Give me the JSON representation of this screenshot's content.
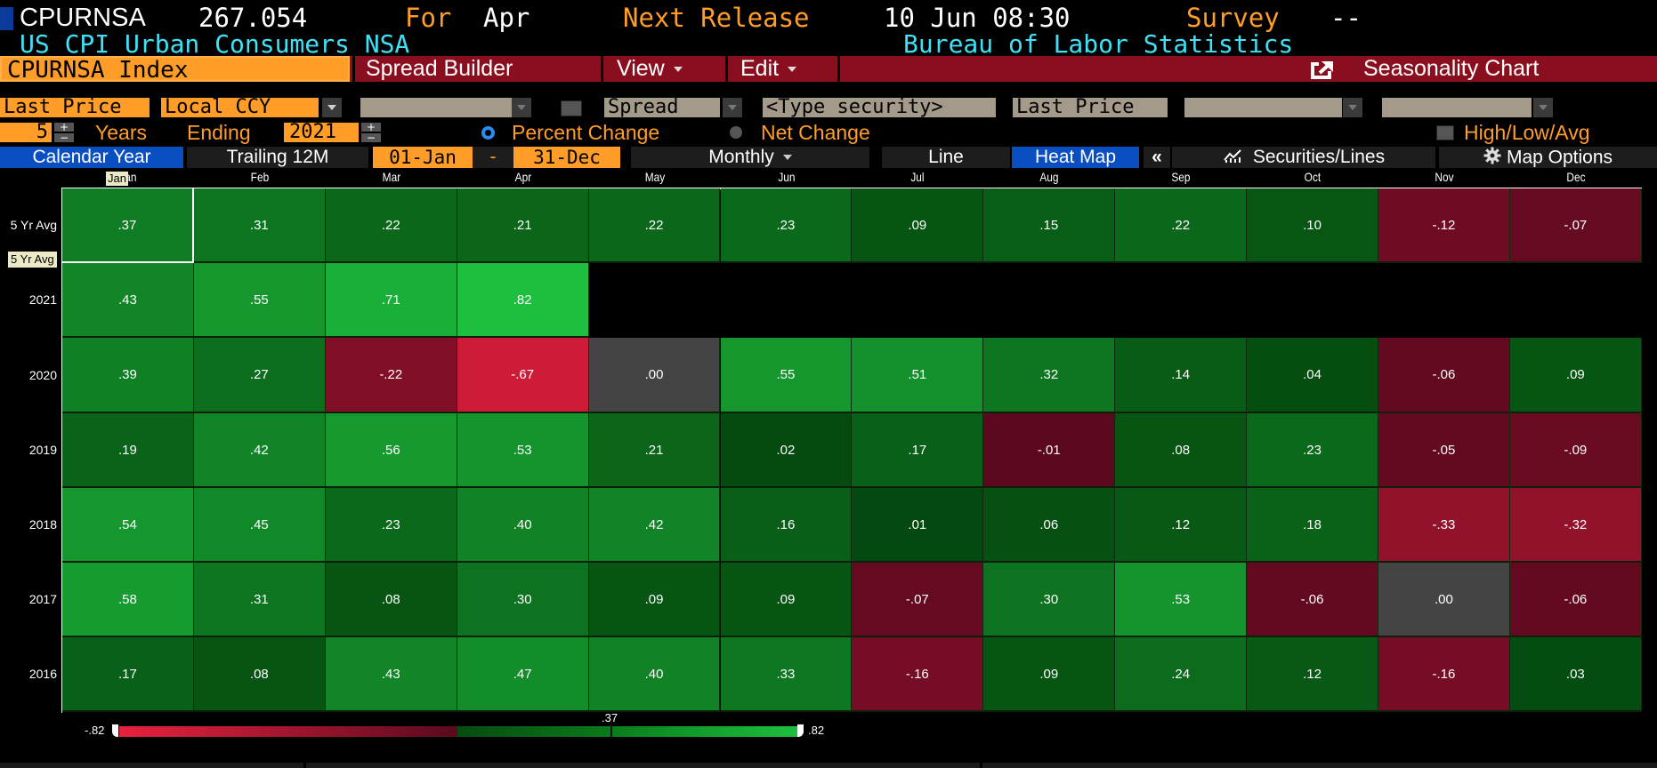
{
  "header": {
    "ticker": "CPURNSA",
    "last_value": "267.054",
    "for_label": "For",
    "for_period": "Apr",
    "next_release_label": "Next Release",
    "next_release_value": "10 Jun 08:30",
    "survey_label": "Survey",
    "survey_value": "--",
    "description": "US CPI Urban Consumers NSA",
    "source": "Bureau of Labor Statistics"
  },
  "toolbar": {
    "security": "CPURNSA Index",
    "spread_builder": "Spread Builder",
    "view": "View",
    "edit": "Edit",
    "title": "Seasonality Chart",
    "title_icon": "export-icon"
  },
  "controls": {
    "field": "Last Price",
    "currency": "Local CCY",
    "blank_dropdown_1": "",
    "spread_label": "Spread",
    "security_placeholder": "<Type security>",
    "field2": "Last Price",
    "blank_dropdown_2": "",
    "blank_dropdown_3": ""
  },
  "period": {
    "years": "5",
    "years_label": "Years",
    "ending_label": "Ending",
    "ending_year": "2021",
    "percent_change": "Percent Change",
    "net_change": "Net Change",
    "selected_mode": "Percent Change",
    "high_low_avg": "High/Low/Avg"
  },
  "tabs": {
    "calendar_year": "Calendar Year",
    "trailing": "Trailing 12M",
    "start_date": "01-Jan",
    "dash": "-",
    "end_date": "31-Dec",
    "frequency": "Monthly",
    "line": "Line",
    "heat_map": "Heat Map",
    "collapse": "«",
    "securities_lines": "Securities/Lines",
    "map_options": "Map Options",
    "active": "Heat Map"
  },
  "tooltips": {
    "month_hover": "Jan",
    "row_hover": "5 Yr Avg"
  },
  "chart_data": {
    "type": "heatmap",
    "title": "Seasonality Chart - CPURNSA Index Percent Change (Monthly)",
    "categories": [
      "Jan",
      "Feb",
      "Mar",
      "Apr",
      "May",
      "Jun",
      "Jul",
      "Aug",
      "Sep",
      "Oct",
      "Nov",
      "Dec"
    ],
    "rows": [
      "5 Yr Avg",
      "2021",
      "2020",
      "2019",
      "2018",
      "2017",
      "2016"
    ],
    "series": [
      {
        "name": "5 Yr Avg",
        "values": [
          ".37",
          ".31",
          ".22",
          ".21",
          ".22",
          ".23",
          ".09",
          ".15",
          ".22",
          ".10",
          "-.12",
          "-.07"
        ]
      },
      {
        "name": "2021",
        "values": [
          ".43",
          ".55",
          ".71",
          ".82",
          null,
          null,
          null,
          null,
          null,
          null,
          null,
          null
        ]
      },
      {
        "name": "2020",
        "values": [
          ".39",
          ".27",
          "-.22",
          "-.67",
          ".00",
          ".55",
          ".51",
          ".32",
          ".14",
          ".04",
          "-.06",
          ".09"
        ]
      },
      {
        "name": "2019",
        "values": [
          ".19",
          ".42",
          ".56",
          ".53",
          ".21",
          ".02",
          ".17",
          "-.01",
          ".08",
          ".23",
          "-.05",
          "-.09"
        ]
      },
      {
        "name": "2018",
        "values": [
          ".54",
          ".45",
          ".23",
          ".40",
          ".42",
          ".16",
          ".01",
          ".06",
          ".12",
          ".18",
          "-.33",
          "-.32"
        ]
      },
      {
        "name": "2017",
        "values": [
          ".58",
          ".31",
          ".08",
          ".30",
          ".09",
          ".09",
          "-.07",
          ".30",
          ".53",
          "-.06",
          ".00",
          "-.06"
        ]
      },
      {
        "name": "2016",
        "values": [
          ".17",
          ".08",
          ".43",
          ".47",
          ".40",
          ".33",
          "-.16",
          ".09",
          ".24",
          ".12",
          "-.16",
          ".03"
        ]
      }
    ],
    "legend": {
      "min": "-.82",
      "max": ".82",
      "marker": ".37"
    },
    "colors": {
      "max_negative": "#e8213e",
      "neutral": "#444444",
      "max_positive": "#1ebe3e"
    }
  }
}
